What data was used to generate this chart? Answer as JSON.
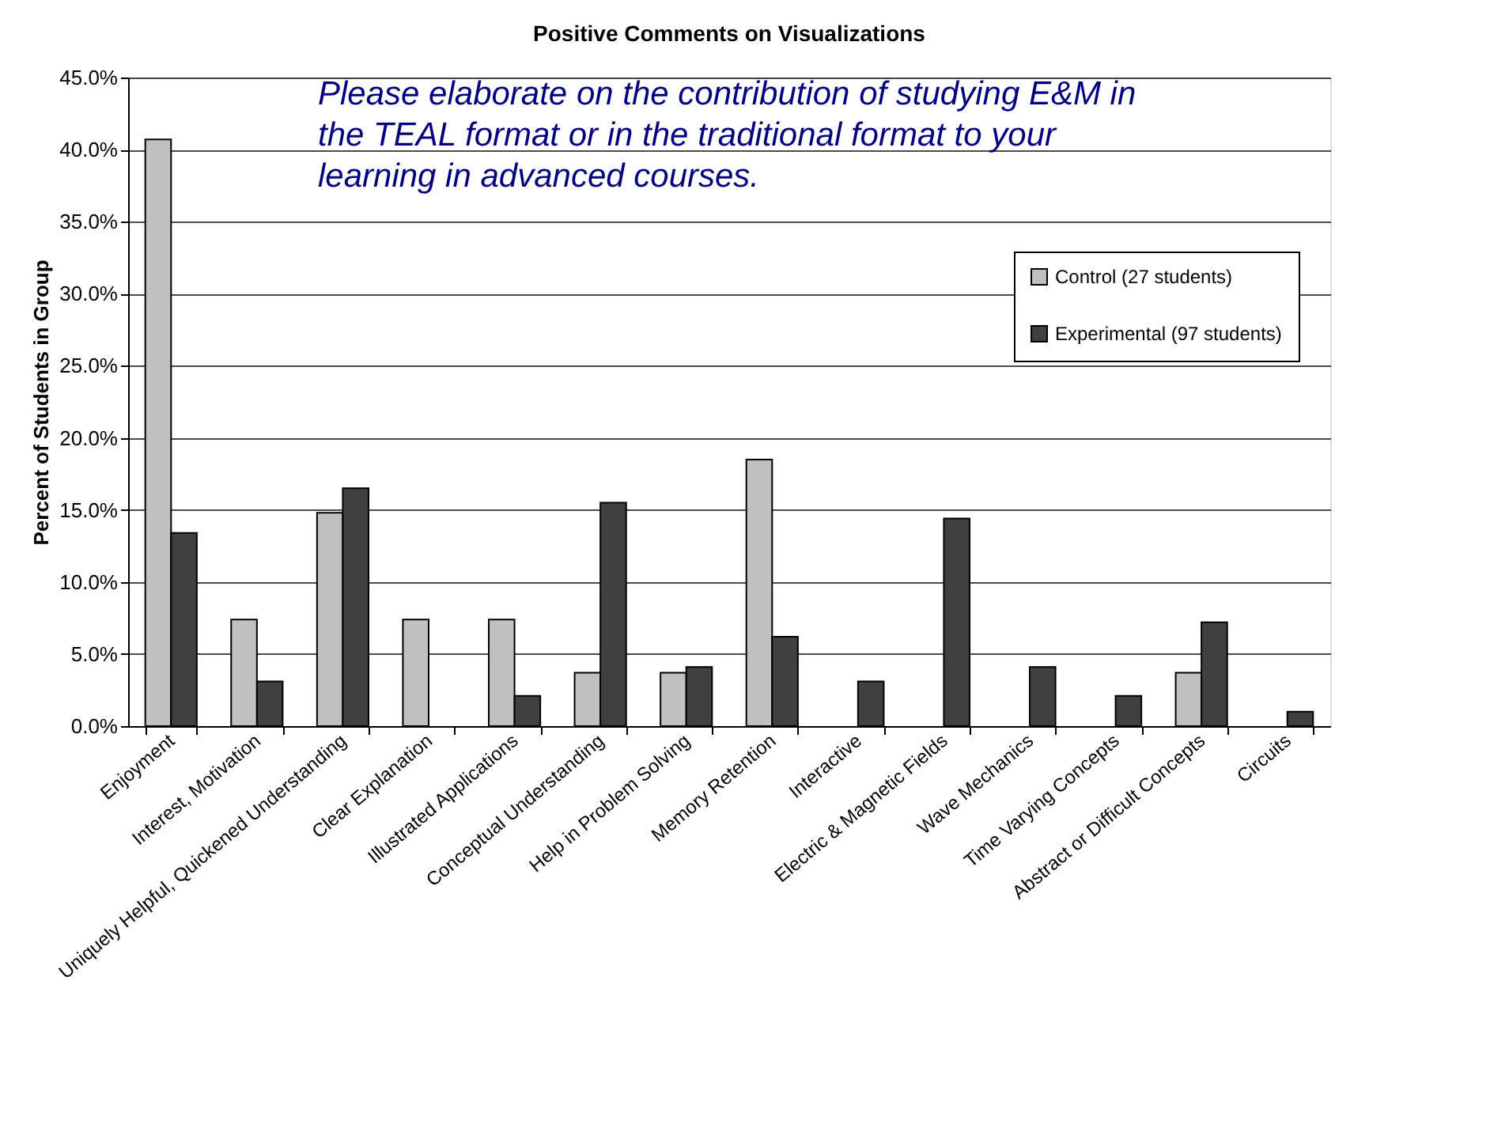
{
  "chart_data": {
    "type": "bar",
    "title": "Positive Comments on Visualizations",
    "ylabel": "Percent of Students in Group",
    "categories": [
      "Enjoyment",
      "Interest, Motivation",
      "Uniquely Helpful, Quickened Understanding",
      "Clear Explanation",
      "Illustrated Applications",
      "Conceptual Understanding",
      "Help in Problem Solving",
      "Memory Retention",
      "Interactive",
      "Electric & Magnetic Fields",
      "Wave Mechanics",
      "Time Varying Concepts",
      "Abstract or Difficult Concepts",
      "Circuits"
    ],
    "series": [
      {
        "name": "Control (27 students)",
        "color": "#c0c0c0",
        "values": [
          40.7,
          7.4,
          14.8,
          7.4,
          7.4,
          3.7,
          3.7,
          18.5,
          0,
          0,
          0,
          0,
          3.7,
          0
        ]
      },
      {
        "name": "Experimental (97 students)",
        "color": "#404040",
        "values": [
          13.4,
          3.1,
          16.5,
          0,
          2.1,
          15.5,
          4.1,
          6.2,
          3.1,
          14.4,
          4.1,
          2.1,
          7.2,
          1.0
        ]
      }
    ],
    "ylim": [
      0,
      45
    ],
    "yticks": [
      {
        "value": 0,
        "label": "0.0%"
      },
      {
        "value": 5,
        "label": "5.0%"
      },
      {
        "value": 10,
        "label": "10.0%"
      },
      {
        "value": 15,
        "label": "15.0%"
      },
      {
        "value": 20,
        "label": "20.0%"
      },
      {
        "value": 25,
        "label": "25.0%"
      },
      {
        "value": 30,
        "label": "30.0%"
      },
      {
        "value": 35,
        "label": "35.0%"
      },
      {
        "value": 40,
        "label": "40.0%"
      },
      {
        "value": 45,
        "label": "45.0%"
      }
    ],
    "grid": "y",
    "legend": "top right",
    "annotations": [
      "Please elaborate on the contribution of studying E&M in the TEAL format or in the traditional format to your learning in advanced courses."
    ]
  }
}
